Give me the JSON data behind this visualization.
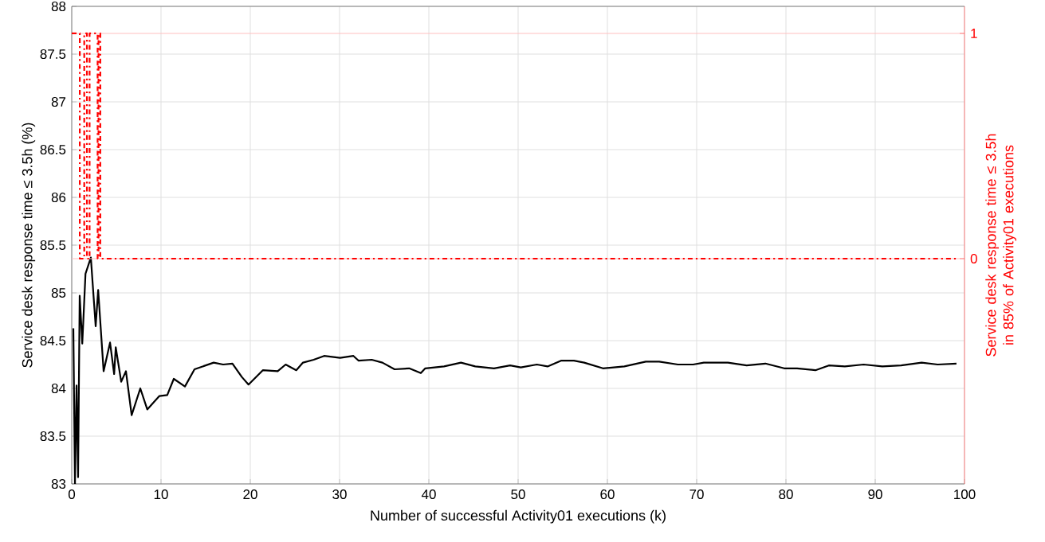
{
  "chart_data": {
    "type": "line",
    "xlabel": "Number of successful Activity01 executions (k)",
    "ylabel": "Service desk response time ≤ 3.5h (%)",
    "y2label": "Service desk response time ≤ 3.5h in 85% of Activity01 executions",
    "xlim": [
      0,
      100
    ],
    "xticks": [
      0,
      10,
      20,
      30,
      40,
      50,
      60,
      70,
      80,
      90,
      100
    ],
    "ylim": [
      83,
      88
    ],
    "yticks": [
      83,
      83.5,
      84,
      84.5,
      85,
      85.5,
      86,
      86.5,
      87,
      87.5,
      88
    ],
    "y2lim": [
      -1,
      1.12
    ],
    "y2ticks": [
      0,
      1
    ],
    "grid": true,
    "series": [
      {
        "color": "#000000",
        "x": [
          0.18,
          0.36,
          0.54,
          0.71,
          0.89,
          1.18,
          1.54,
          2.14,
          2.68,
          2.96,
          3.57,
          4.29,
          4.75,
          4.93,
          5.54,
          6.07,
          6.71,
          7.68,
          8.46,
          9.82,
          10.7,
          11.43,
          12.68,
          13.75,
          15.9,
          16.96,
          18.0,
          19.05,
          19.8,
          21.4,
          23.07,
          23.96,
          25.15,
          25.9,
          27.1,
          28.27,
          30.06,
          31.55,
          32.14,
          33.6,
          34.8,
          36.16,
          37.8,
          39.1,
          39.6,
          41.7,
          43.6,
          45.2,
          47.3,
          49.1,
          50.3,
          52.1,
          53.3,
          54.8,
          56.25,
          57.4,
          59.5,
          61.9,
          64.3,
          65.8,
          67.9,
          69.6,
          70.8,
          73.5,
          75.6,
          77.7,
          79.8,
          81.25,
          83.3,
          84.8,
          86.6,
          88.7,
          90.8,
          92.9,
          95.2,
          97.0,
          99.1
        ],
        "values": [
          84.63,
          83.0,
          84.03,
          83.07,
          84.97,
          84.47,
          85.2,
          85.37,
          84.65,
          85.03,
          84.18,
          84.48,
          84.15,
          84.43,
          84.07,
          84.18,
          83.72,
          84.0,
          83.78,
          83.92,
          83.93,
          84.1,
          84.02,
          84.2,
          84.27,
          84.25,
          84.26,
          84.12,
          84.04,
          84.19,
          84.18,
          84.25,
          84.19,
          84.27,
          84.3,
          84.34,
          84.32,
          84.34,
          84.29,
          84.3,
          84.27,
          84.2,
          84.21,
          84.16,
          84.21,
          84.23,
          84.27,
          84.23,
          84.21,
          84.24,
          84.22,
          84.25,
          84.23,
          84.29,
          84.29,
          84.27,
          84.21,
          84.23,
          84.28,
          84.28,
          84.25,
          84.25,
          84.27,
          84.27,
          84.24,
          84.26,
          84.21,
          84.21,
          84.19,
          84.24,
          84.23,
          84.25,
          84.23,
          84.24,
          84.27,
          84.25,
          84.26
        ]
      },
      {
        "type": "step",
        "axis": "y2",
        "color": "#ff0000",
        "line_style": "dashed",
        "x": [
          0,
          0.9,
          1.4,
          1.7,
          2.0,
          2.9,
          3.0,
          3.2,
          99.1
        ],
        "values": [
          1,
          0,
          1,
          0,
          1,
          0,
          1,
          0,
          0
        ]
      }
    ]
  }
}
